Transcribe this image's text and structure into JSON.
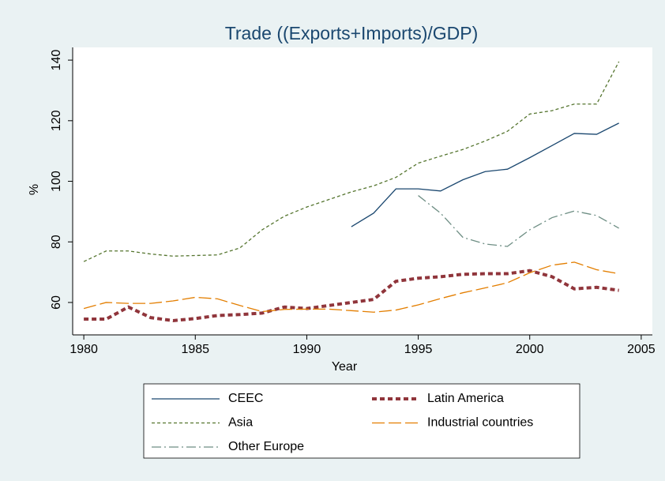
{
  "chart_data": {
    "type": "line",
    "title": "Trade ((Exports+Imports)/GDP)",
    "x_label": "Year",
    "y_label": "%",
    "x": [
      1980,
      1981,
      1982,
      1983,
      1984,
      1985,
      1986,
      1987,
      1988,
      1989,
      1990,
      1991,
      1992,
      1993,
      1994,
      1995,
      1996,
      1997,
      1998,
      1999,
      2000,
      2001,
      2002,
      2003,
      2004
    ],
    "series": [
      {
        "name": "CEEC",
        "color": "#1a476f",
        "values": [
          null,
          null,
          null,
          null,
          null,
          null,
          null,
          null,
          null,
          null,
          null,
          null,
          85,
          89.5,
          97.5,
          97.5,
          96.8,
          100.5,
          103.2,
          104,
          107.8,
          111.8,
          115.8,
          115.5,
          119.2
        ]
      },
      {
        "name": "Latin America",
        "color": "#90353b",
        "values": [
          54.5,
          54.5,
          58.5,
          55,
          54,
          54.7,
          55.7,
          56,
          56.5,
          58.5,
          58,
          59,
          60,
          61,
          67,
          68,
          68.5,
          69.3,
          69.5,
          69.5,
          70.5,
          68.5,
          64.5,
          65,
          64
        ]
      },
      {
        "name": "Asia",
        "color": "#55752f",
        "values": [
          73.5,
          77,
          77,
          76,
          75.3,
          75.5,
          75.7,
          78,
          84,
          88.5,
          91.5,
          94,
          96.5,
          98.5,
          101.3,
          106,
          108.3,
          110.5,
          113.3,
          116.5,
          122.2,
          123.3,
          125.5,
          125.5,
          139.5
        ]
      },
      {
        "name": "Industrial countries",
        "color": "#e37e00",
        "values": [
          58,
          60,
          59.7,
          59.7,
          60.5,
          61.7,
          61.2,
          59,
          57,
          57.7,
          57.8,
          57.8,
          57.3,
          56.8,
          57.5,
          59.2,
          61.3,
          63.2,
          64.8,
          66.5,
          69.8,
          72.3,
          73.3,
          70.8,
          69.5
        ]
      },
      {
        "name": "Other Europe",
        "color": "#6e8e84",
        "values": [
          null,
          null,
          null,
          null,
          null,
          null,
          null,
          null,
          null,
          null,
          null,
          null,
          null,
          null,
          null,
          95.3,
          89.5,
          81.5,
          79.3,
          78.5,
          84,
          88,
          90.2,
          88.7,
          84.5
        ]
      }
    ],
    "xlim": [
      1979.5,
      2005.5
    ],
    "xticks": [
      1980,
      1985,
      1990,
      1995,
      2000,
      2005
    ],
    "ylim": [
      49.3,
      144.2
    ],
    "yticks": [
      60,
      80,
      100,
      120,
      140
    ],
    "grid": false
  }
}
